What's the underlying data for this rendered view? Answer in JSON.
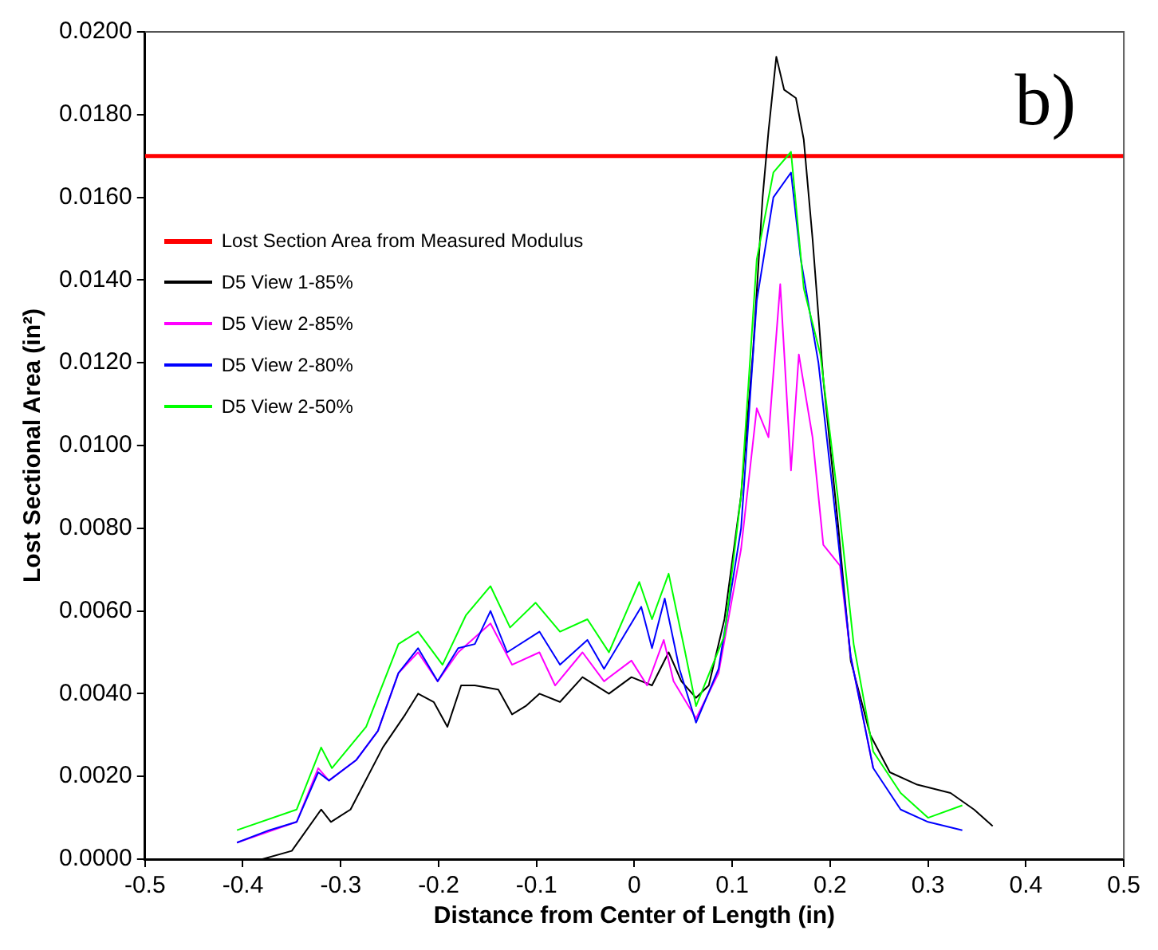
{
  "chart_data": {
    "type": "line",
    "xlabel": "Distance from Center of Length (in)",
    "ylabel": "Lost Sectional Area (in²)",
    "annotations": [
      "b)"
    ],
    "xlim": [
      -0.5,
      0.5
    ],
    "xticks": [
      -0.5,
      -0.4,
      -0.3,
      -0.2,
      -0.1,
      0,
      0.1,
      0.2,
      0.3,
      0.4,
      0.5
    ],
    "ylim": [
      0,
      0.02
    ],
    "yticks": [
      {
        "value": 0,
        "label": "0.0000"
      },
      {
        "value": 0.002,
        "label": "0.0020"
      },
      {
        "value": 0.004,
        "label": "0.0040"
      },
      {
        "value": 0.006,
        "label": "0.0060"
      },
      {
        "value": 0.008,
        "label": "0.0080"
      },
      {
        "value": 0.01,
        "label": "0.0100"
      },
      {
        "value": 0.012,
        "label": "0.0120"
      },
      {
        "value": 0.014,
        "label": "0.0140"
      },
      {
        "value": 0.016,
        "label": "0.0160"
      },
      {
        "value": 0.018,
        "label": "0.0180"
      },
      {
        "value": 0.02,
        "label": "0.0200"
      }
    ],
    "grid": false,
    "legend": "top left",
    "marker": "none",
    "line_style": "solid",
    "series": [
      {
        "name": "Lost Section Area from Measured Modulus",
        "color": "#ff0000",
        "x": [
          -0.5,
          0.5
        ],
        "values": [
          0.017,
          0.017
        ]
      },
      {
        "name": "D5 View 1-85%",
        "color": "#000000",
        "x": [
          -0.38,
          -0.35,
          -0.32,
          -0.31,
          -0.29,
          -0.257,
          -0.234,
          -0.221,
          -0.205,
          -0.191,
          -0.177,
          -0.163,
          -0.139,
          -0.125,
          -0.111,
          -0.097,
          -0.076,
          -0.053,
          -0.026,
          -0.003,
          0.018,
          0.035,
          0.048,
          0.063,
          0.076,
          0.092,
          0.109,
          0.121,
          0.131,
          0.137,
          0.145,
          0.153,
          0.165,
          0.173,
          0.182,
          0.193,
          0.208,
          0.221,
          0.241,
          0.261,
          0.289,
          0.323,
          0.347,
          0.366
        ],
        "values": [
          0,
          0.0002,
          0.0012,
          0.0009,
          0.0012,
          0.0027,
          0.0035,
          0.004,
          0.0038,
          0.0032,
          0.0042,
          0.0042,
          0.0041,
          0.0035,
          0.0037,
          0.004,
          0.0038,
          0.0044,
          0.004,
          0.0044,
          0.0042,
          0.005,
          0.0043,
          0.0039,
          0.0042,
          0.0058,
          0.0088,
          0.0122,
          0.016,
          0.0176,
          0.0194,
          0.0186,
          0.0184,
          0.0174,
          0.015,
          0.0116,
          0.0081,
          0.0048,
          0.003,
          0.0021,
          0.0018,
          0.0016,
          0.0012,
          0.0008
        ]
      },
      {
        "name": "D5 View 2-85%",
        "color": "#ff00ff",
        "x": [
          -0.406,
          -0.345,
          -0.323,
          -0.312,
          -0.284,
          -0.262,
          -0.241,
          -0.221,
          -0.201,
          -0.18,
          -0.147,
          -0.125,
          -0.097,
          -0.081,
          -0.053,
          -0.031,
          -0.003,
          0.013,
          0.03,
          0.04,
          0.063,
          0.086,
          0.109,
          0.125,
          0.137,
          0.149,
          0.16,
          0.168,
          0.182,
          0.193,
          0.21,
          0.221,
          0.244
        ],
        "values": [
          0.0004,
          0.0009,
          0.0022,
          0.0019,
          0.0024,
          0.0031,
          0.0045,
          0.005,
          0.0043,
          0.005,
          0.0057,
          0.0047,
          0.005,
          0.0042,
          0.005,
          0.0043,
          0.0048,
          0.0042,
          0.0053,
          0.0043,
          0.0034,
          0.0045,
          0.0075,
          0.0109,
          0.0102,
          0.0139,
          0.0094,
          0.0122,
          0.0102,
          0.0076,
          0.0071,
          0.0049,
          0.0022
        ]
      },
      {
        "name": "D5 View 2-80%",
        "color": "#0000ff",
        "x": [
          -0.406,
          -0.373,
          -0.345,
          -0.323,
          -0.312,
          -0.284,
          -0.262,
          -0.241,
          -0.221,
          -0.201,
          -0.18,
          -0.163,
          -0.147,
          -0.13,
          -0.097,
          -0.076,
          -0.048,
          -0.031,
          0.007,
          0.018,
          0.031,
          0.046,
          0.063,
          0.086,
          0.109,
          0.125,
          0.142,
          0.16,
          0.17,
          0.188,
          0.205,
          0.221,
          0.244,
          0.272,
          0.3,
          0.335
        ],
        "values": [
          0.0004,
          0.0007,
          0.0009,
          0.0021,
          0.0019,
          0.0024,
          0.0031,
          0.0045,
          0.0051,
          0.0043,
          0.0051,
          0.0052,
          0.006,
          0.005,
          0.0055,
          0.0047,
          0.0053,
          0.0046,
          0.0061,
          0.0051,
          0.0063,
          0.0046,
          0.0033,
          0.0046,
          0.008,
          0.0135,
          0.016,
          0.0166,
          0.0145,
          0.012,
          0.0084,
          0.0049,
          0.0022,
          0.0012,
          0.0009,
          0.0007
        ]
      },
      {
        "name": "D5 View 2-50%",
        "color": "#00ff00",
        "x": [
          -0.406,
          -0.345,
          -0.32,
          -0.309,
          -0.274,
          -0.241,
          -0.221,
          -0.196,
          -0.172,
          -0.147,
          -0.127,
          -0.101,
          -0.076,
          -0.048,
          -0.026,
          0.005,
          0.018,
          0.035,
          0.051,
          0.063,
          0.092,
          0.109,
          0.125,
          0.142,
          0.16,
          0.173,
          0.19,
          0.208,
          0.224,
          0.244,
          0.272,
          0.3,
          0.335
        ],
        "values": [
          0.0007,
          0.0012,
          0.0027,
          0.0022,
          0.0032,
          0.0052,
          0.0055,
          0.0047,
          0.0059,
          0.0066,
          0.0056,
          0.0062,
          0.0055,
          0.0058,
          0.005,
          0.0067,
          0.0058,
          0.0069,
          0.0051,
          0.0037,
          0.0054,
          0.0088,
          0.0145,
          0.0166,
          0.0171,
          0.0138,
          0.0122,
          0.0087,
          0.0052,
          0.0026,
          0.0016,
          0.001,
          0.0013
        ]
      }
    ]
  }
}
